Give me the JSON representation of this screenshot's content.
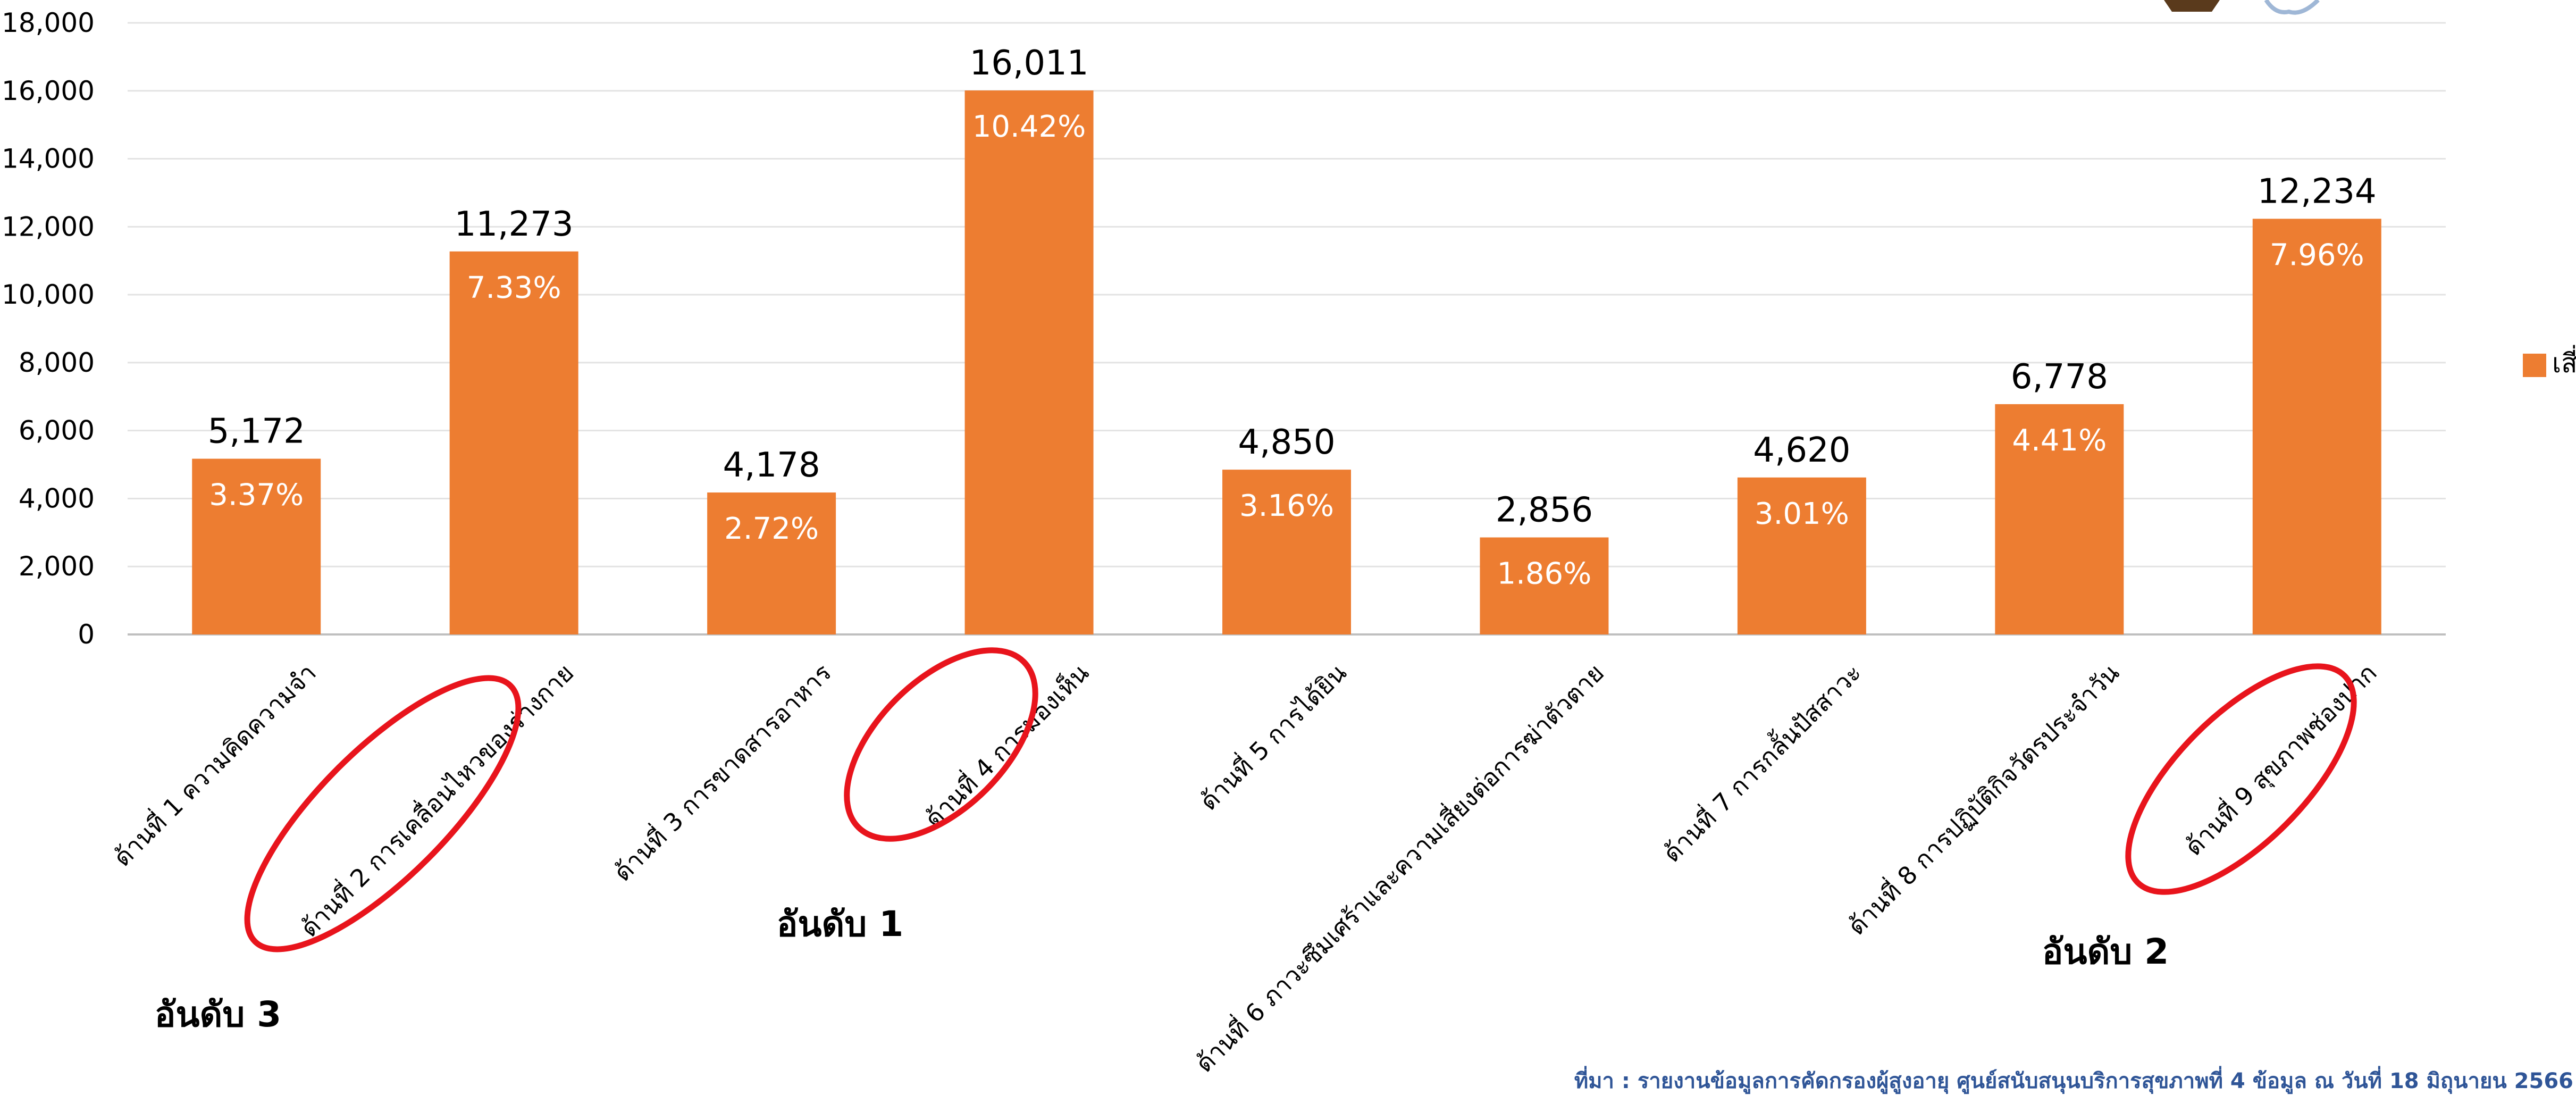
{
  "chart_data": {
    "type": "bar",
    "categories": [
      "ด้านที่ 1 ความคิดความจำ",
      "ด้านที่ 2 การเคลื่อนไหวของร่างกาย",
      "ด้านที่ 3 การขาดสารอาหาร",
      "ด้านที่ 4 การมองเห็น",
      "ด้านที่ 5 การได้ยิน",
      "ด้านที่ 6 ภาวะซึมเศร้าและความเสี่ยงต่อการฆ่าตัวตาย",
      "ด้านที่ 7 การกลั้นปัสสาวะ",
      "ด้านที่ 8 การปฏิบัติกิจวัตรประจำวัน",
      "ด้านที่ 9 สุขภาพช่องปาก"
    ],
    "series": [
      {
        "name": "เสี่ยง",
        "values": [
          5172,
          11273,
          4178,
          16011,
          4850,
          2856,
          4620,
          6778,
          12234
        ],
        "value_labels": [
          "5,172",
          "11,273",
          "4,178",
          "16,011",
          "4,850",
          "2,856",
          "4,620",
          "6,778",
          "12,234"
        ],
        "percent_labels": [
          "3.37%",
          "7.33%",
          "2.72%",
          "10.42%",
          "3.16%",
          "1.86%",
          "3.01%",
          "4.41%",
          "7.96%"
        ]
      }
    ],
    "ylim": [
      0,
      18000
    ],
    "yticks": [
      0,
      2000,
      4000,
      6000,
      8000,
      10000,
      12000,
      14000,
      16000,
      18000
    ],
    "ytick_labels": [
      "0",
      "2,000",
      "4,000",
      "6,000",
      "8,000",
      "10,000",
      "12,000",
      "14,000",
      "16,000",
      "18,000"
    ],
    "grid": true,
    "legend": {
      "position": "right",
      "entries": [
        "เสี่ยง"
      ]
    },
    "bar_color": "#ed7d31",
    "highlight_color": "#e8141c",
    "highlights": [
      {
        "category_index": 3,
        "rank_label": "อันดับ 1"
      },
      {
        "category_index": 8,
        "rank_label": "อันดับ 2"
      },
      {
        "category_index": 1,
        "rank_label": "อันดับ 3"
      }
    ],
    "source": "ที่มา : รายงานข้อมูลการคัดกรองผู้สูงอายุ ศูนย์สนับสนุนบริการสุขภาพที่ 4 ข้อมูล ณ วันที่ 18 มิถุนายน 2566"
  }
}
